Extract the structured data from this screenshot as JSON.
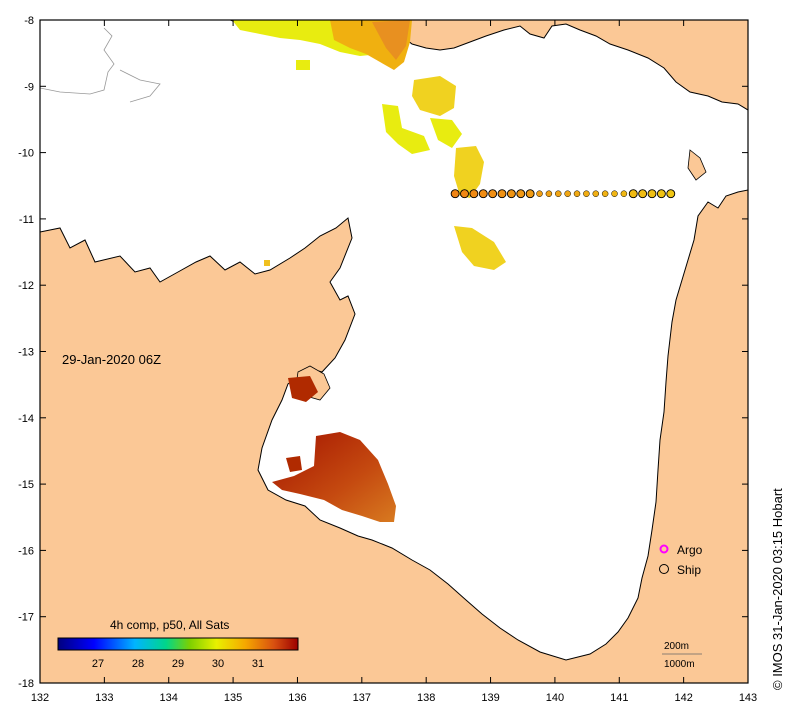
{
  "map": {
    "date_label": "29-Jan-2020 06Z",
    "extent": {
      "lon": [
        132,
        143
      ],
      "lat": [
        -18,
        -8
      ]
    },
    "x_ticks": [
      "132",
      "133",
      "134",
      "135",
      "136",
      "137",
      "138",
      "139",
      "140",
      "141",
      "142",
      "143"
    ],
    "y_ticks": [
      "-8",
      "-9",
      "-10",
      "-11",
      "-12",
      "-13",
      "-14",
      "-15",
      "-16",
      "-17",
      "-18"
    ],
    "colors": {
      "land": "#fbc896",
      "sea": "#ffffff",
      "coast": "#000000"
    }
  },
  "colorbar": {
    "title": "4h comp, p50, All Sats",
    "range": [
      26,
      32
    ],
    "ticks": [
      "27",
      "28",
      "29",
      "30",
      "31"
    ]
  },
  "legend": {
    "argo_label": "Argo",
    "ship_label": "Ship",
    "argo_color": "#ff00ff"
  },
  "depth": {
    "label_200": "200m",
    "label_1000": "1000m"
  },
  "credit": "© IMOS 31-Jan-2020 03:15 Hobart",
  "ship_track": {
    "lat": -10.62,
    "lon_start": 138.45,
    "lon_end": 141.8,
    "count": 24,
    "sst_start": 30.6,
    "sst_end": 30.0
  }
}
